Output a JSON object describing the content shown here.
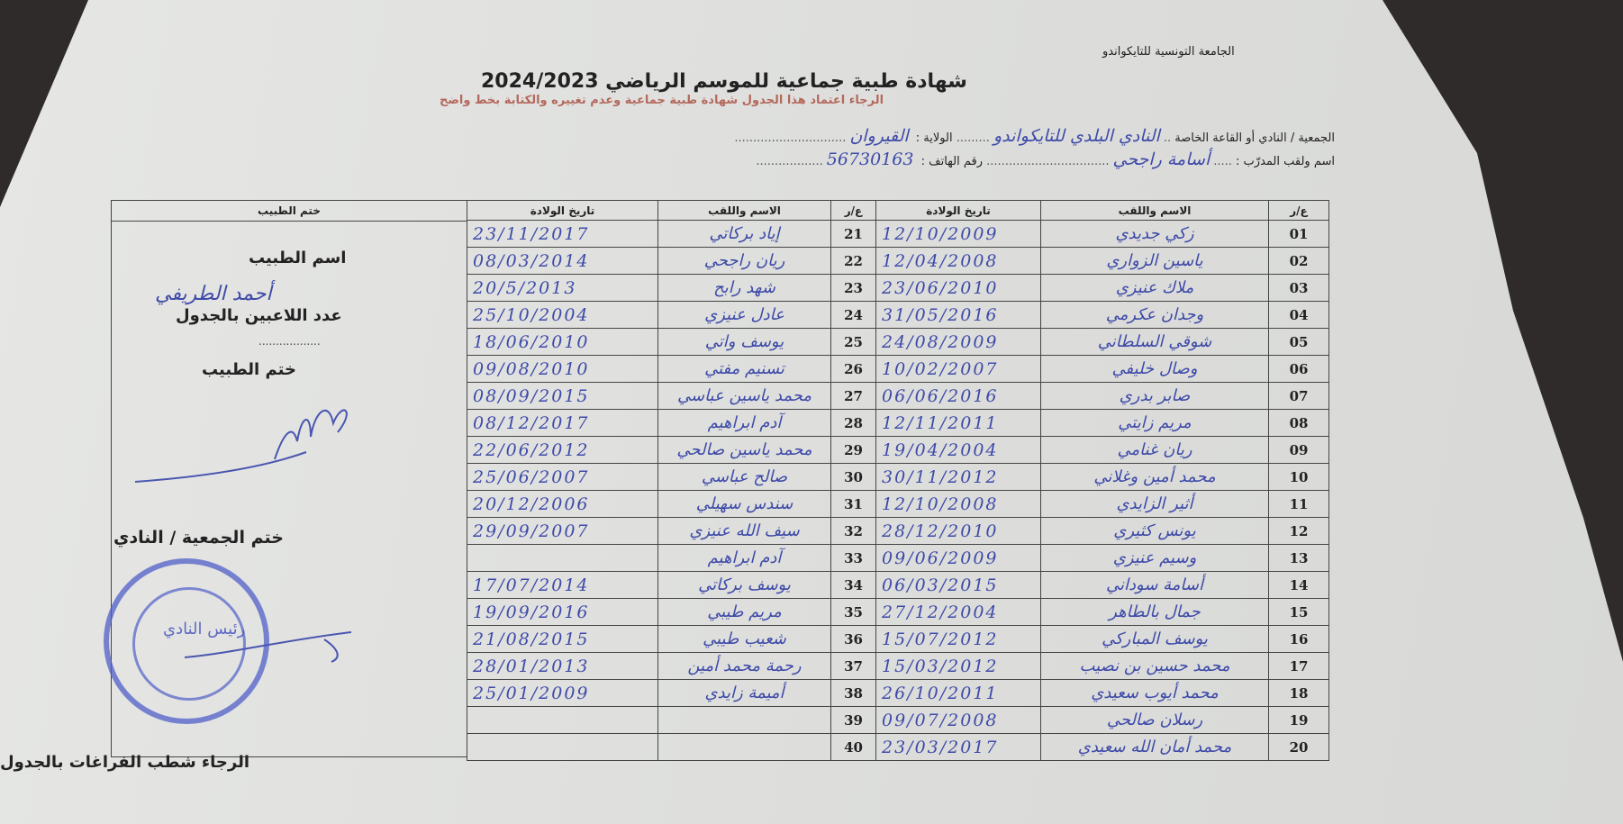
{
  "header": {
    "organization": "الجامعة التونسية للتايكواندو",
    "title": "شهادة طبية جماعية للموسم الرياضي 2024/2023",
    "instruction": "الرجاء اعتماد هذا الجدول شهادة طبية جماعية وعدم تغييره والكتابة بخط واضح"
  },
  "fields": {
    "club_label": "الجمعية / النادي أو القاعة الخاصة",
    "club_value": "النادي البلدي للتايكواندو",
    "state_label": "الولاية :",
    "state_value": "القيروان",
    "coach_label": "اسم ولقب المدرّب :",
    "coach_value": "أسامة راجحي",
    "phone_label": "رقم الهاتف :",
    "phone_value": "56730163"
  },
  "table": {
    "headers": {
      "number": "ع/ر",
      "name": "الاسم واللقب",
      "dob": "تاريخ الولادة",
      "doctor_stamp": "ختم الطبيب"
    },
    "players": [
      {
        "no": "01",
        "name": "زكي جديدي",
        "dob": "12/10/2009"
      },
      {
        "no": "02",
        "name": "ياسين الزواري",
        "dob": "12/04/2008"
      },
      {
        "no": "03",
        "name": "ملاك عنيزي",
        "dob": "23/06/2010"
      },
      {
        "no": "04",
        "name": "وجدان عكرمي",
        "dob": "31/05/2016"
      },
      {
        "no": "05",
        "name": "شوقي السلطاني",
        "dob": "24/08/2009"
      },
      {
        "no": "06",
        "name": "وصال خليفي",
        "dob": "10/02/2007"
      },
      {
        "no": "07",
        "name": "صابر بدري",
        "dob": "06/06/2016"
      },
      {
        "no": "08",
        "name": "مريم زايتي",
        "dob": "12/11/2011"
      },
      {
        "no": "09",
        "name": "ريان غنامي",
        "dob": "19/04/2004"
      },
      {
        "no": "10",
        "name": "محمد أمين وغلاني",
        "dob": "30/11/2012"
      },
      {
        "no": "11",
        "name": "أثير الزايدي",
        "dob": "12/10/2008"
      },
      {
        "no": "12",
        "name": "يونس كثيري",
        "dob": "28/12/2010"
      },
      {
        "no": "13",
        "name": "وسيم عنيزي",
        "dob": "09/06/2009"
      },
      {
        "no": "14",
        "name": "أسامة سوداني",
        "dob": "06/03/2015"
      },
      {
        "no": "15",
        "name": "جمال بالطاهر",
        "dob": "27/12/2004"
      },
      {
        "no": "16",
        "name": "يوسف المباركي",
        "dob": "15/07/2012"
      },
      {
        "no": "17",
        "name": "محمد حسين بن نصيب",
        "dob": "15/03/2012"
      },
      {
        "no": "18",
        "name": "محمد أيوب سعيدي",
        "dob": "26/10/2011"
      },
      {
        "no": "19",
        "name": "رسلان صالحي",
        "dob": "09/07/2008"
      },
      {
        "no": "20",
        "name": "محمد أمان الله سعيدي",
        "dob": "23/03/2017"
      },
      {
        "no": "21",
        "name": "إياد بركاتي",
        "dob": "23/11/2017"
      },
      {
        "no": "22",
        "name": "ريان راجحي",
        "dob": "08/03/2014"
      },
      {
        "no": "23",
        "name": "شهد رابح",
        "dob": "20/5/2013"
      },
      {
        "no": "24",
        "name": "عادل عنيزي",
        "dob": "25/10/2004"
      },
      {
        "no": "25",
        "name": "يوسف واتي",
        "dob": "18/06/2010"
      },
      {
        "no": "26",
        "name": "تسنيم مفتي",
        "dob": "09/08/2010"
      },
      {
        "no": "27",
        "name": "محمد ياسين عباسي",
        "dob": "08/09/2015"
      },
      {
        "no": "28",
        "name": "آدم ابراهيم",
        "dob": "08/12/2017"
      },
      {
        "no": "29",
        "name": "محمد ياسين صالحي",
        "dob": "22/06/2012"
      },
      {
        "no": "30",
        "name": "صالح عباسي",
        "dob": "25/06/2007"
      },
      {
        "no": "31",
        "name": "سندس سهيلي",
        "dob": "20/12/2006"
      },
      {
        "no": "32",
        "name": "سيف الله عنيزي",
        "dob": "29/09/2007"
      },
      {
        "no": "33",
        "name": "آدم ابراهيم",
        "dob": ""
      },
      {
        "no": "34",
        "name": "يوسف بركاتي",
        "dob": "17/07/2014"
      },
      {
        "no": "35",
        "name": "مريم طيبي",
        "dob": "19/09/2016"
      },
      {
        "no": "36",
        "name": "شعيب طيبي",
        "dob": "21/08/2015"
      },
      {
        "no": "37",
        "name": "رحمة محمد أمين",
        "dob": "28/01/2013"
      },
      {
        "no": "38",
        "name": "أميمة زايدي",
        "dob": "25/01/2009"
      },
      {
        "no": "39",
        "name": "",
        "dob": ""
      },
      {
        "no": "40",
        "name": "",
        "dob": ""
      }
    ]
  },
  "doctor": {
    "name_label": "اسم الطبيب",
    "name_value": "أحمد الطريفي",
    "count_label": "عدد اللاعبين بالجدول",
    "count_value": "..................",
    "stamp_label": "ختم الطبيب",
    "club_stamp_label": "ختم الجمعية / النادي",
    "seal_text": "رئيس النادي"
  },
  "footer": {
    "note": "الرجاء شطب الفراغات بالجدول"
  },
  "colors": {
    "ink": "#3e4aa8",
    "subtitle": "#b5685c",
    "seal": "#505fc8"
  }
}
